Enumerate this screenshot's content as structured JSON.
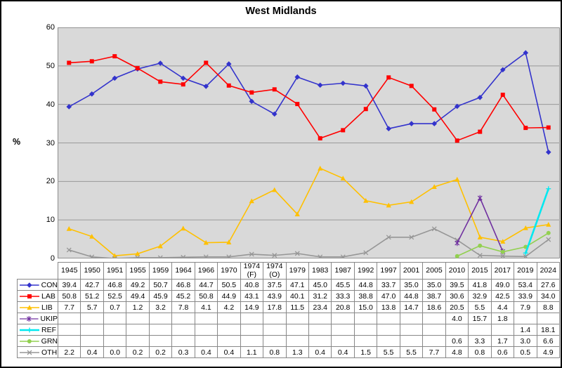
{
  "chart_data": {
    "type": "line",
    "title": "West Midlands",
    "ylabel": "%",
    "ylim": [
      0,
      60
    ],
    "yticks": [
      0,
      10,
      20,
      30,
      40,
      50,
      60
    ],
    "grid": true,
    "plot_bg": "#d9d9d9",
    "gridline_color": "#999999",
    "plot_border_color": "#8c8c8c",
    "legend_position": "table-rows-left",
    "categories": [
      "1945",
      "1950",
      "1951",
      "1955",
      "1959",
      "1964",
      "1966",
      "1970",
      "1974 (F)",
      "1974 (O)",
      "1979",
      "1983",
      "1987",
      "1992",
      "1997",
      "2001",
      "2005",
      "2010",
      "2015",
      "2017",
      "2019",
      "2024"
    ],
    "series": [
      {
        "name": "CON",
        "color": "#3333cc",
        "marker": "diamond",
        "values": [
          39.4,
          42.7,
          46.8,
          49.2,
          50.7,
          46.8,
          44.7,
          50.5,
          40.8,
          37.5,
          47.1,
          45.0,
          45.5,
          44.8,
          33.7,
          35.0,
          35.0,
          39.5,
          41.8,
          49.0,
          53.4,
          27.6
        ]
      },
      {
        "name": "LAB",
        "color": "#ff0000",
        "marker": "square",
        "values": [
          50.8,
          51.2,
          52.5,
          49.4,
          45.9,
          45.2,
          50.8,
          44.9,
          43.1,
          43.9,
          40.1,
          31.2,
          33.3,
          38.8,
          47.0,
          44.8,
          38.7,
          30.6,
          32.9,
          42.5,
          33.9,
          34.0
        ]
      },
      {
        "name": "LIB",
        "color": "#ffc000",
        "marker": "triangle",
        "values": [
          7.7,
          5.7,
          0.7,
          1.2,
          3.2,
          7.8,
          4.1,
          4.2,
          14.9,
          17.8,
          11.5,
          23.4,
          20.8,
          15.0,
          13.8,
          14.7,
          18.6,
          20.5,
          5.5,
          4.4,
          7.9,
          8.8
        ]
      },
      {
        "name": "OTH",
        "color": "#969696",
        "marker": "x",
        "values": [
          2.2,
          0.4,
          0.0,
          0.2,
          0.2,
          0.3,
          0.4,
          0.4,
          1.1,
          0.8,
          1.3,
          0.4,
          0.4,
          1.5,
          5.5,
          5.5,
          7.7,
          4.8,
          0.8,
          0.6,
          0.5,
          4.9
        ]
      },
      {
        "name": "UKIP",
        "color": "#7030a0",
        "marker": "star",
        "values": [
          null,
          null,
          null,
          null,
          null,
          null,
          null,
          null,
          null,
          null,
          null,
          null,
          null,
          null,
          null,
          null,
          null,
          4.0,
          15.7,
          1.8,
          null,
          null
        ]
      },
      {
        "name": "GRN",
        "color": "#92d050",
        "marker": "circle",
        "values": [
          null,
          null,
          null,
          null,
          null,
          null,
          null,
          null,
          null,
          null,
          null,
          null,
          null,
          null,
          null,
          null,
          null,
          0.6,
          3.3,
          1.7,
          3.0,
          6.6
        ]
      },
      {
        "name": "REF",
        "color": "#00e8f0",
        "marker": "plus",
        "width": 2.6,
        "values": [
          null,
          null,
          null,
          null,
          null,
          null,
          null,
          null,
          null,
          null,
          null,
          null,
          null,
          null,
          null,
          null,
          null,
          null,
          null,
          null,
          1.4,
          18.1
        ]
      }
    ],
    "table_row_order": [
      "CON",
      "LAB",
      "LIB",
      "UKIP",
      "REF",
      "GRN",
      "OTH"
    ]
  }
}
